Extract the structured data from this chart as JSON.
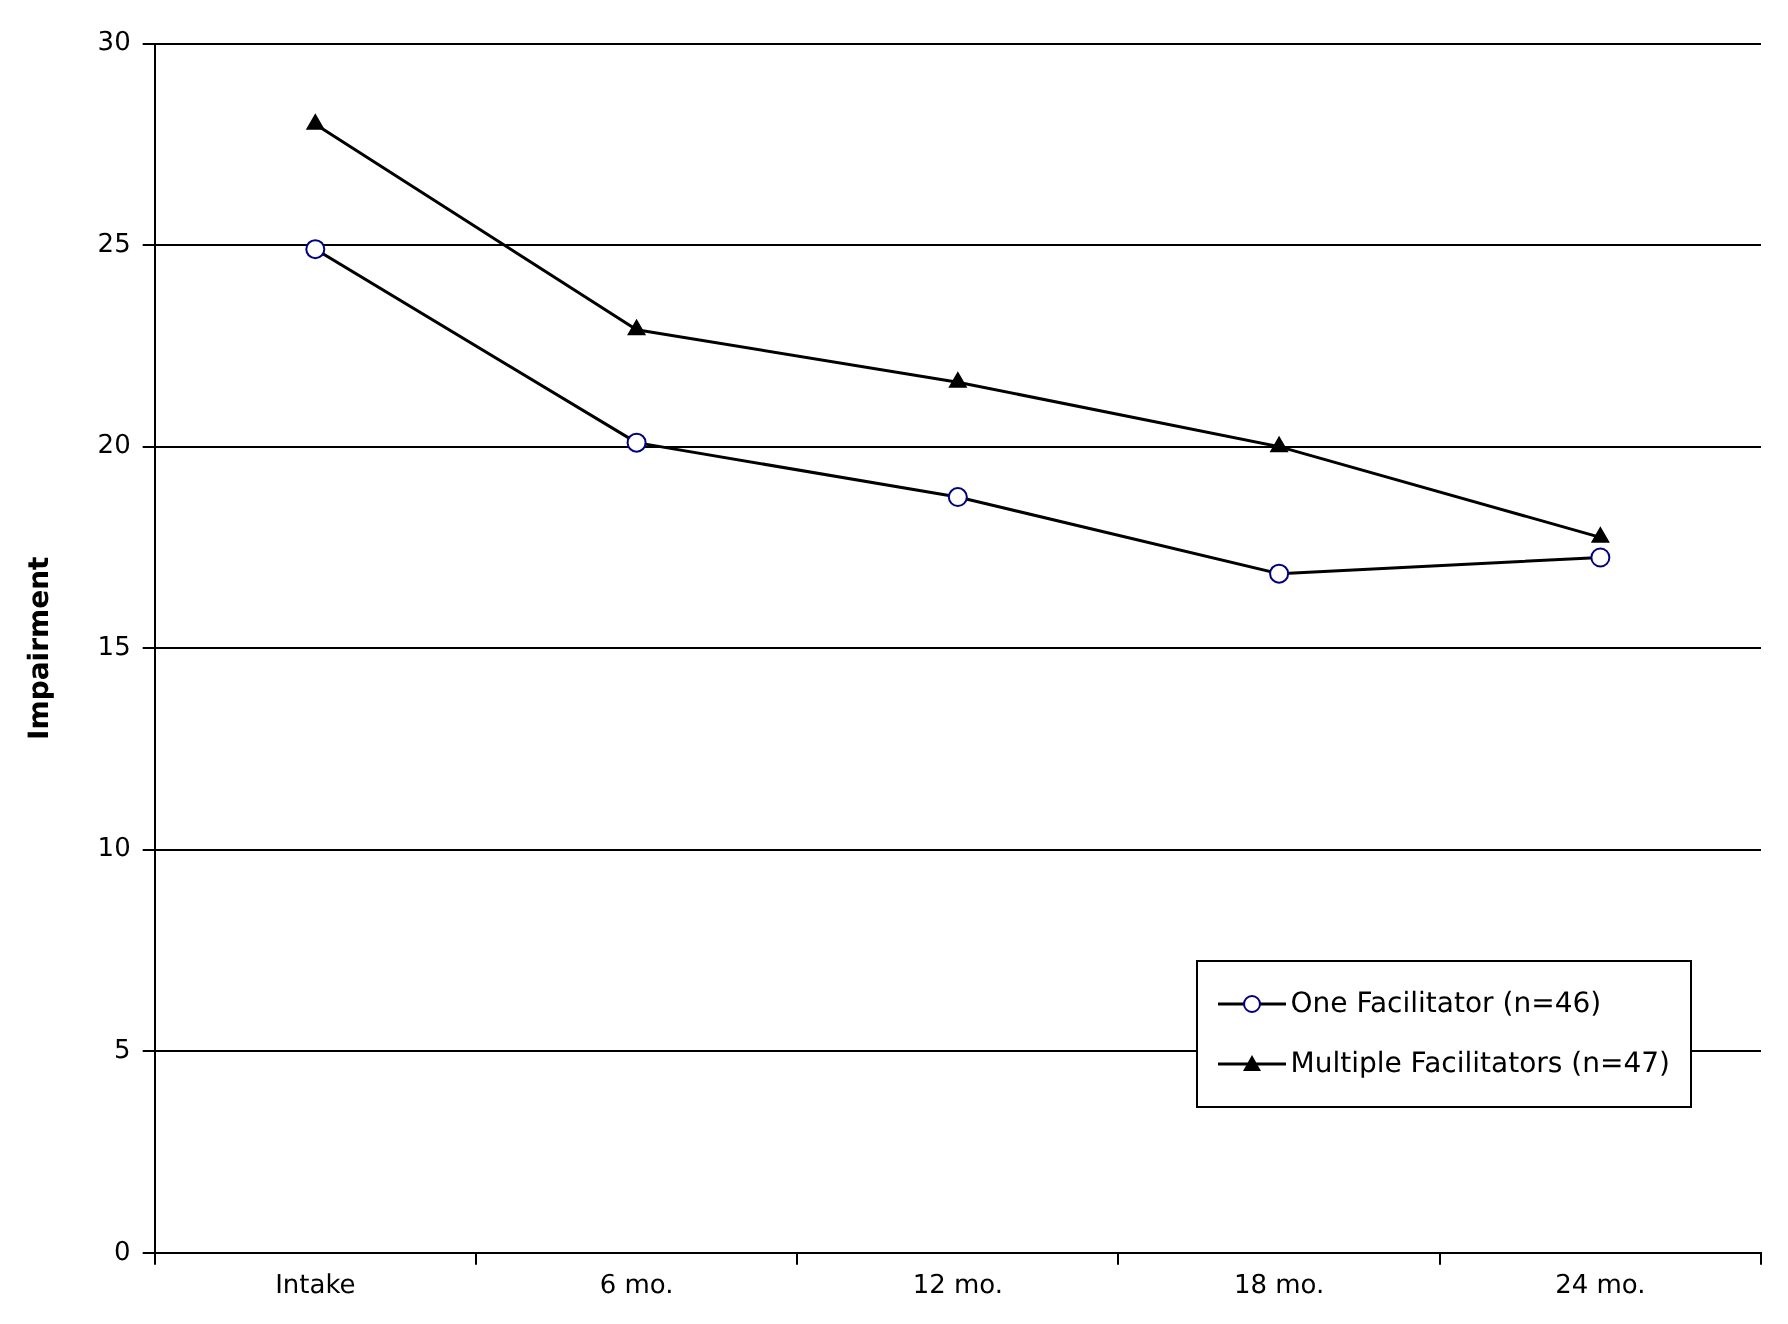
{
  "chart_data": {
    "type": "line",
    "ylabel": "Impairment",
    "categories": [
      "Intake",
      "6 mo.",
      "12 mo.",
      "18 mo.",
      "24 mo."
    ],
    "series": [
      {
        "name": "One Facilitator (n=46)",
        "color": "#000000",
        "marker": "circle",
        "values": [
          24.9,
          20.1,
          18.75,
          16.85,
          17.25
        ]
      },
      {
        "name": "Multiple Facilitators (n=47)",
        "color": "#000000",
        "marker": "triangle",
        "values": [
          28.0,
          22.9,
          21.6,
          20.0,
          17.75
        ]
      }
    ],
    "ylim": [
      0,
      30
    ],
    "yticks": [
      0,
      5,
      10,
      15,
      20,
      25,
      30
    ],
    "grid": "y",
    "legend": "bottom right",
    "line_style": "solid"
  }
}
